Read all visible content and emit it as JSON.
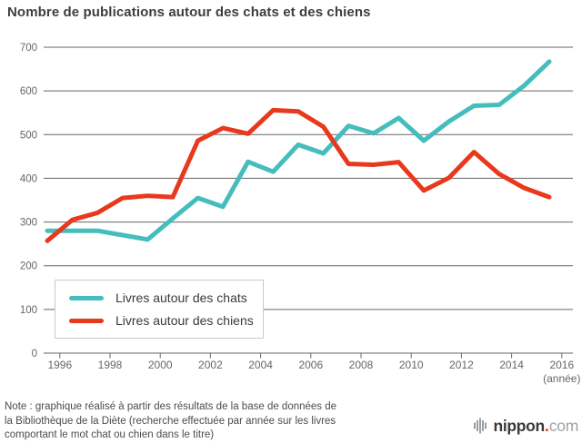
{
  "title": "Nombre de publications autour des chats et des chiens",
  "note": {
    "lines": [
      "Note : graphique réalisé à partir des résultats de la base de données de",
      "la Bibliothèque de la Diète (recherche effectuée par année sur les livres",
      "comportant le mot chat ou chien dans le titre)"
    ]
  },
  "branding": {
    "name_bold": "nippon",
    "dot": ".",
    "name_light": "com",
    "dot_color": "#e8391d",
    "icon_color": "#9aa0a4"
  },
  "colors": {
    "grid": "#666666",
    "axis_text": "#666666"
  },
  "chart_data": {
    "type": "line",
    "title": "Nombre de publications autour des chats et des chiens",
    "xlabel": "(année)",
    "ylabel": "",
    "ylim": [
      0,
      700
    ],
    "ytick_step": 100,
    "grid": true,
    "legend_position": "bottom-left-inside",
    "x": [
      1995,
      1996,
      1997,
      1998,
      1999,
      2000,
      2001,
      2002,
      2003,
      2004,
      2005,
      2006,
      2007,
      2008,
      2009,
      2010,
      2011,
      2012,
      2013,
      2014,
      2015
    ],
    "xticks": [
      1996,
      1998,
      2000,
      2002,
      2004,
      2006,
      2008,
      2010,
      2012,
      2014,
      2016
    ],
    "series": [
      {
        "name": "Livres autour des chats",
        "color": "#45bdbd",
        "values": [
          280,
          280,
          280,
          270,
          260,
          308,
          355,
          335,
          438,
          415,
          477,
          457,
          520,
          503,
          538,
          486,
          530,
          566,
          568,
          612,
          667
        ]
      },
      {
        "name": "Livres autour des chiens",
        "color": "#e8391d",
        "values": [
          257,
          305,
          321,
          355,
          360,
          357,
          486,
          515,
          502,
          556,
          553,
          518,
          433,
          431,
          437,
          372,
          401,
          460,
          410,
          378,
          357
        ]
      }
    ]
  }
}
